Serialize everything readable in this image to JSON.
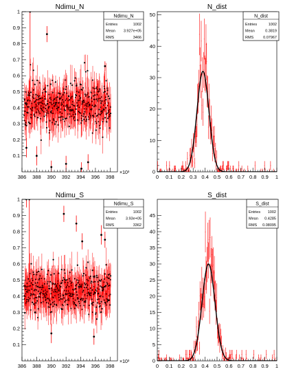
{
  "chart_data": [
    {
      "type": "scatter",
      "title": "Ndimu_N",
      "stats": {
        "name": "Ndimu_N",
        "rows": [
          [
            "Entries",
            "1002"
          ],
          [
            "Mean",
            "3.927e+05"
          ],
          [
            "RMS",
            "3466"
          ]
        ]
      },
      "xlim": [
        386,
        399
      ],
      "ylim": [
        0,
        1.0
      ],
      "x_ticks": [
        386,
        388,
        390,
        392,
        394,
        396,
        398
      ],
      "y_ticks": [
        0.1,
        0.2,
        0.3,
        0.4,
        0.5,
        0.6,
        0.7,
        0.8,
        0.9,
        1
      ],
      "x_multiplier": "×10³",
      "xrange": [
        386.3,
        398.1
      ],
      "baseline_mean": 0.42,
      "baseline_spread": 0.07,
      "error_size": 0.07,
      "marker_color": "#000000",
      "error_color": "#ff0000",
      "outliers": [
        {
          "x": 387.1,
          "y": 1.0,
          "err": 0.5
        },
        {
          "x": 389.4,
          "y": 0.86,
          "err": 0.05
        },
        {
          "x": 397.3,
          "y": 0.66,
          "err": 0.03
        },
        {
          "x": 386.6,
          "y": 0.15,
          "err": 0.06
        },
        {
          "x": 388.0,
          "y": 0.1,
          "err": 0.06
        },
        {
          "x": 390.0,
          "y": 0.03,
          "err": 0.04
        },
        {
          "x": 392.0,
          "y": 0.05,
          "err": 0.05
        },
        {
          "x": 394.1,
          "y": 0.02,
          "err": 0.04
        },
        {
          "x": 395.0,
          "y": 0.06,
          "err": 0.05
        }
      ],
      "seed": 11
    },
    {
      "type": "bar",
      "title": "N_dist",
      "stats": {
        "name": "N_dist",
        "rows": [
          [
            "Entries",
            "1002"
          ],
          [
            "Mean",
            "0.3819"
          ],
          [
            "RMS",
            "0.07967"
          ]
        ]
      },
      "xlim": [
        0,
        1
      ],
      "ylim": [
        0,
        51
      ],
      "x_ticks": [
        0,
        0.1,
        0.2,
        0.3,
        0.4,
        0.5,
        0.6,
        0.7,
        0.8,
        0.9,
        1
      ],
      "y_ticks": [
        0,
        10,
        20,
        30,
        40,
        50
      ],
      "fit": {
        "mean": 0.3819,
        "sigma": 0.05,
        "peak": 32
      },
      "hist_color": "#ff0000",
      "fit_color": "#000000",
      "seed": 23
    },
    {
      "type": "scatter",
      "title": "Ndimu_S",
      "stats": {
        "name": "Ndimu_S",
        "rows": [
          [
            "Entries",
            "1002"
          ],
          [
            "Mean",
            "3.93e+05"
          ],
          [
            "RMS",
            "3362"
          ]
        ]
      },
      "xlim": [
        386,
        399
      ],
      "ylim": [
        0,
        1.0
      ],
      "x_ticks": [
        386,
        388,
        390,
        392,
        394,
        396,
        398
      ],
      "y_ticks": [
        0.1,
        0.2,
        0.3,
        0.4,
        0.5,
        0.6,
        0.7,
        0.8,
        0.9,
        1
      ],
      "x_multiplier": "×10³",
      "xrange": [
        386.3,
        398.1
      ],
      "baseline_mean": 0.43,
      "baseline_spread": 0.065,
      "error_size": 0.07,
      "marker_color": "#000000",
      "error_color": "#ff0000",
      "outliers": [
        {
          "x": 386.6,
          "y": 1.0,
          "err": 0.05
        },
        {
          "x": 387.0,
          "y": 1.0,
          "err": 0.5
        },
        {
          "x": 391.7,
          "y": 0.91,
          "err": 0.05
        },
        {
          "x": 393.4,
          "y": 0.85,
          "err": 0.05
        },
        {
          "x": 394.2,
          "y": 0.74,
          "err": 0.05
        },
        {
          "x": 396.8,
          "y": 0.78,
          "err": 0.06
        },
        {
          "x": 397.3,
          "y": 0.75,
          "err": 0.05
        },
        {
          "x": 395.8,
          "y": 0.15,
          "err": 0.05
        },
        {
          "x": 390.0,
          "y": 0.17,
          "err": 0.06
        },
        {
          "x": 387.8,
          "y": 0.3,
          "err": 0.05
        }
      ],
      "seed": 37
    },
    {
      "type": "bar",
      "title": "S_dist",
      "stats": {
        "name": "S_dist",
        "rows": [
          [
            "Entries",
            "1002"
          ],
          [
            "Mean",
            "0.4285"
          ],
          [
            "RMS",
            "0.08095"
          ]
        ]
      },
      "xlim": [
        0,
        1
      ],
      "ylim": [
        0,
        50
      ],
      "x_ticks": [
        0,
        0.1,
        0.2,
        0.3,
        0.4,
        0.5,
        0.6,
        0.7,
        0.8,
        0.9,
        1
      ],
      "y_ticks": [
        0,
        5,
        10,
        15,
        20,
        25,
        30,
        35,
        40,
        45
      ],
      "fit": {
        "mean": 0.4285,
        "sigma": 0.054,
        "peak": 30
      },
      "hist_color": "#ff0000",
      "fit_color": "#000000",
      "seed": 53
    }
  ]
}
